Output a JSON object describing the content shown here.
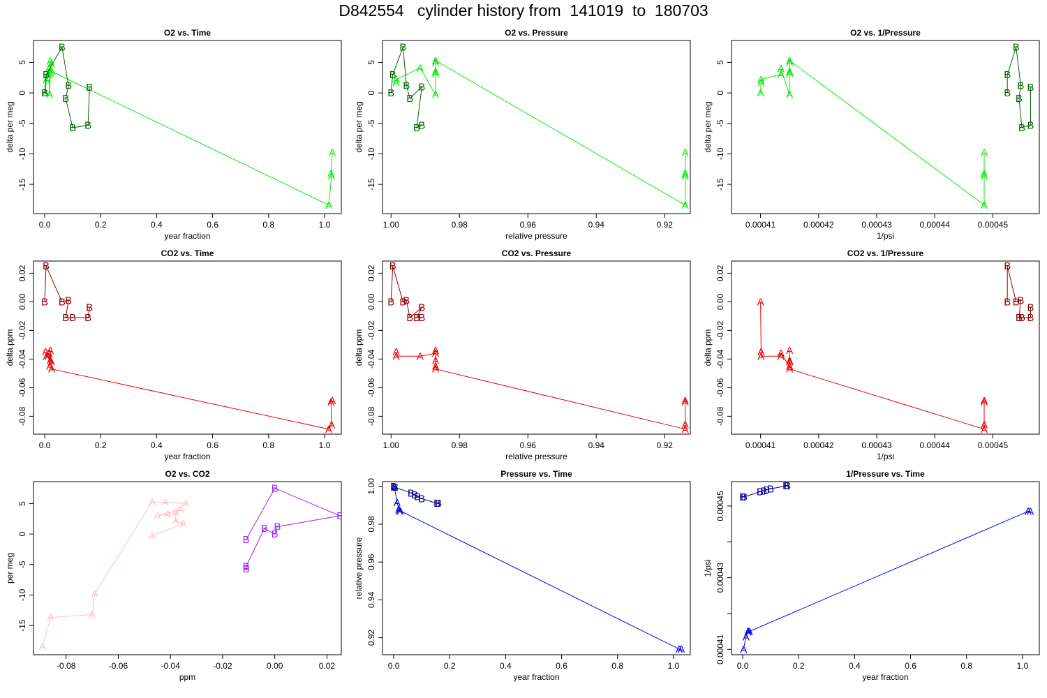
{
  "page_title": "D842554   cylinder history from  141019  to  180703",
  "colors": {
    "A_O2": "#00ee00",
    "B_O2": "#006400",
    "A_CO2": "#ee0000",
    "B_CO2": "#8b0000",
    "A_O2CO2": "#ffc0cb",
    "B_O2CO2": "#a020f0",
    "A_P": "#0000ee",
    "B_P": "#00008b"
  },
  "chart_data": [
    {
      "type": "line",
      "title": "O2 vs. Time",
      "xlabel": "year fraction",
      "ylabel": "delta per meg",
      "xlim": [
        -0.04,
        1.06
      ],
      "ylim": [
        -19.8,
        8.6
      ],
      "xticks": [
        0.0,
        0.2,
        0.4,
        0.6,
        0.8,
        1.0
      ],
      "xtick_labels": [
        "0.0",
        "0.2",
        "0.4",
        "0.6",
        "0.8",
        "1.0"
      ],
      "yticks": [
        -15,
        -10,
        -5,
        0,
        5
      ],
      "ytick_labels": [
        "-15",
        "-10",
        "-5",
        "0",
        "5"
      ],
      "series": [
        {
          "marker": "A",
          "color_key": "A_O2",
          "x": [
            0.003,
            0.006,
            0.012,
            0.015,
            0.018,
            0.02,
            0.02,
            0.024,
            0.025,
            1.015,
            1.025,
            1.023,
            1.028
          ],
          "y": [
            0.0,
            2.2,
            3.0,
            4.0,
            -0.3,
            3.2,
            5.2,
            4.8,
            3.5,
            -18.4,
            -13.7,
            -13.2,
            -9.8
          ]
        },
        {
          "marker": "B",
          "color_key": "B_O2",
          "x": [
            0.0,
            0.005,
            0.062,
            0.085,
            0.075,
            0.1,
            0.155,
            0.16
          ],
          "y": [
            0.0,
            3.0,
            7.5,
            1.2,
            -0.9,
            -5.7,
            -5.3,
            0.9
          ]
        }
      ]
    },
    {
      "type": "line",
      "title": "O2 vs. Pressure",
      "xlabel": "relative pressure",
      "ylabel": "delta per meg",
      "xlim": [
        1.0025,
        0.9125
      ],
      "ylim": [
        -19.8,
        8.6
      ],
      "xticks": [
        1.0,
        0.98,
        0.96,
        0.94,
        0.92
      ],
      "xtick_labels": [
        "1.00",
        "0.98",
        "0.96",
        "0.94",
        "0.92"
      ],
      "yticks": [
        -15,
        -10,
        -5,
        0,
        5
      ],
      "ytick_labels": [
        "-15",
        "-10",
        "-5",
        "0",
        "5"
      ],
      "series": [
        {
          "marker": "A",
          "color_key": "A_O2",
          "x": [
            0.9985,
            0.9985,
            0.9915,
            0.987,
            0.987,
            0.987,
            0.987,
            0.987,
            0.914,
            0.914,
            0.914,
            0.914
          ],
          "y": [
            1.7,
            2.2,
            4.1,
            -0.3,
            3.2,
            3.5,
            5.0,
            5.3,
            -18.4,
            -13.7,
            -13.2,
            -9.8
          ]
        },
        {
          "marker": "B",
          "color_key": "B_O2",
          "x": [
            1.0,
            0.9995,
            0.9965,
            0.9955,
            0.9945,
            0.991,
            0.9925,
            0.991
          ],
          "y": [
            0.0,
            3.0,
            7.5,
            1.2,
            -0.9,
            1.0,
            -5.7,
            -5.3
          ]
        }
      ]
    },
    {
      "type": "line",
      "title": "O2 vs. 1/Pressure",
      "xlabel": "1/psi",
      "ylabel": "delta per meg",
      "xlim": [
        0.000405,
        0.000458
      ],
      "ylim": [
        -19.8,
        8.6
      ],
      "xticks": [
        0.00041,
        0.00042,
        0.00043,
        0.00044,
        0.00045
      ],
      "xtick_labels": [
        "0.00041",
        "0.00042",
        "0.00043",
        "0.00044",
        "0.00045"
      ],
      "yticks": [
        -15,
        -10,
        -5,
        0,
        5
      ],
      "ytick_labels": [
        "-15",
        "-10",
        "-5",
        "0",
        "5"
      ],
      "series": [
        {
          "marker": "A",
          "color_key": "A_O2",
          "x": [
            0.00041,
            0.0004101,
            0.0004101,
            0.0004135,
            0.0004135,
            0.000415,
            0.000415,
            0.000415,
            0.000415,
            0.000415,
            0.0004485,
            0.0004485,
            0.0004485,
            0.0004485
          ],
          "y": [
            0.0,
            1.7,
            2.2,
            3.0,
            4.0,
            -0.3,
            3.2,
            3.5,
            5.0,
            5.3,
            -18.4,
            -13.7,
            -13.2,
            -9.8
          ]
        },
        {
          "marker": "B",
          "color_key": "B_O2",
          "x": [
            0.0004525,
            0.0004525,
            0.000454,
            0.0004548,
            0.0004545,
            0.000455,
            0.0004565,
            0.0004565
          ],
          "y": [
            0.0,
            3.0,
            7.5,
            1.2,
            -0.9,
            -5.7,
            -5.3,
            0.9
          ]
        }
      ]
    },
    {
      "type": "line",
      "title": "CO2 vs. Time",
      "xlabel": "year fraction",
      "ylabel": "delta ppm",
      "xlim": [
        -0.04,
        1.06
      ],
      "ylim": [
        -0.0925,
        0.0285
      ],
      "xticks": [
        0.0,
        0.2,
        0.4,
        0.6,
        0.8,
        1.0
      ],
      "xtick_labels": [
        "0.0",
        "0.2",
        "0.4",
        "0.6",
        "0.8",
        "1.0"
      ],
      "yticks": [
        -0.08,
        -0.06,
        -0.04,
        -0.02,
        0.0,
        0.02
      ],
      "ytick_labels": [
        "-0.08",
        "-0.06",
        "-0.04",
        "-0.02",
        "0.00",
        "0.02"
      ],
      "series": [
        {
          "marker": "A",
          "color_key": "A_CO2",
          "x": [
            0.003,
            0.006,
            0.012,
            0.015,
            0.018,
            0.02,
            0.02,
            0.024,
            0.025,
            1.015,
            1.025,
            1.023,
            1.028
          ],
          "y": [
            -0.035,
            -0.038,
            -0.038,
            -0.036,
            -0.045,
            -0.041,
            -0.034,
            -0.042,
            -0.047,
            -0.089,
            -0.086,
            -0.07,
            -0.069
          ]
        },
        {
          "marker": "B",
          "color_key": "B_CO2",
          "x": [
            0.0,
            0.005,
            0.062,
            0.085,
            0.075,
            0.1,
            0.155,
            0.16
          ],
          "y": [
            0.0,
            0.025,
            0.0,
            0.001,
            -0.011,
            -0.011,
            -0.011,
            -0.004
          ]
        }
      ]
    },
    {
      "type": "line",
      "title": "CO2 vs. Pressure",
      "xlabel": "relative pressure",
      "ylabel": "delta ppm",
      "xlim": [
        1.0025,
        0.9125
      ],
      "ylim": [
        -0.0925,
        0.0285
      ],
      "xticks": [
        1.0,
        0.98,
        0.96,
        0.94,
        0.92
      ],
      "xtick_labels": [
        "1.00",
        "0.98",
        "0.96",
        "0.94",
        "0.92"
      ],
      "yticks": [
        -0.08,
        -0.06,
        -0.04,
        -0.02,
        0.0,
        0.02
      ],
      "ytick_labels": [
        "-0.08",
        "-0.06",
        "-0.04",
        "-0.02",
        "0.00",
        "0.02"
      ],
      "series": [
        {
          "marker": "A",
          "color_key": "A_CO2",
          "x": [
            0.9985,
            0.9985,
            0.9915,
            0.987,
            0.987,
            0.987,
            0.987,
            0.987,
            0.914,
            0.914,
            0.914,
            0.914
          ],
          "y": [
            -0.035,
            -0.038,
            -0.038,
            -0.036,
            -0.045,
            -0.041,
            -0.034,
            -0.047,
            -0.089,
            -0.086,
            -0.07,
            -0.069
          ]
        },
        {
          "marker": "B",
          "color_key": "B_CO2",
          "x": [
            1.0,
            0.9995,
            0.9965,
            0.9955,
            0.9945,
            0.991,
            0.9925,
            0.991
          ],
          "y": [
            0.0,
            0.025,
            0.0,
            0.001,
            -0.011,
            -0.004,
            -0.011,
            -0.011
          ]
        }
      ]
    },
    {
      "type": "line",
      "title": "CO2 vs. 1/Pressure",
      "xlabel": "1/psi",
      "ylabel": "delta ppm",
      "xlim": [
        0.000405,
        0.000458
      ],
      "ylim": [
        -0.0925,
        0.0285
      ],
      "xticks": [
        0.00041,
        0.00042,
        0.00043,
        0.00044,
        0.00045
      ],
      "xtick_labels": [
        "0.00041",
        "0.00042",
        "0.00043",
        "0.00044",
        "0.00045"
      ],
      "yticks": [
        -0.08,
        -0.06,
        -0.04,
        -0.02,
        0.0,
        0.02
      ],
      "ytick_labels": [
        "-0.08",
        "-0.06",
        "-0.04",
        "-0.02",
        "0.00",
        "0.02"
      ],
      "series": [
        {
          "marker": "A",
          "color_key": "A_CO2",
          "x": [
            0.00041,
            0.0004101,
            0.0004101,
            0.0004135,
            0.0004135,
            0.000415,
            0.000415,
            0.000415,
            0.000415,
            0.000415,
            0.0004485,
            0.0004485,
            0.0004485,
            0.0004485
          ],
          "y": [
            0.0,
            -0.035,
            -0.038,
            -0.038,
            -0.036,
            -0.045,
            -0.041,
            -0.034,
            -0.042,
            -0.047,
            -0.089,
            -0.086,
            -0.07,
            -0.069
          ]
        },
        {
          "marker": "B",
          "color_key": "B_CO2",
          "x": [
            0.0004525,
            0.0004525,
            0.000454,
            0.0004548,
            0.0004545,
            0.000455,
            0.0004565,
            0.0004565
          ],
          "y": [
            0.0,
            0.025,
            0.0,
            0.001,
            -0.011,
            -0.011,
            -0.011,
            -0.004
          ]
        }
      ]
    },
    {
      "type": "line",
      "title": "O2 vs. CO2",
      "xlabel": "ppm",
      "ylabel": "per meg",
      "xlim": [
        -0.0925,
        0.0255
      ],
      "ylim": [
        -19.8,
        8.6
      ],
      "xticks": [
        -0.08,
        -0.06,
        -0.04,
        -0.02,
        0.0,
        0.02
      ],
      "xtick_labels": [
        "-0.08",
        "-0.06",
        "-0.04",
        "-0.02",
        "0.00",
        "0.02"
      ],
      "yticks": [
        -15,
        -10,
        -5,
        0,
        5
      ],
      "ytick_labels": [
        "-15",
        "-10",
        "-5",
        "0",
        "5"
      ],
      "series": [
        {
          "marker": "A",
          "color_key": "A_O2CO2",
          "x": [
            -0.089,
            -0.086,
            -0.07,
            -0.069,
            -0.047,
            -0.042,
            -0.034,
            -0.041,
            -0.045,
            -0.036,
            -0.038,
            -0.038,
            -0.035,
            -0.047
          ],
          "y": [
            -18.4,
            -13.7,
            -13.2,
            -9.8,
            5.3,
            5.2,
            5.0,
            3.2,
            3.0,
            4.0,
            3.5,
            2.2,
            1.7,
            -0.3
          ]
        },
        {
          "marker": "B",
          "color_key": "B_O2CO2",
          "x": [
            -0.011,
            0.0,
            0.025,
            0.001,
            0.0,
            -0.004,
            -0.011,
            -0.011
          ],
          "y": [
            -0.9,
            7.5,
            3.0,
            1.2,
            0.0,
            0.9,
            -5.3,
            -5.7
          ]
        }
      ]
    },
    {
      "type": "line",
      "title": "Pressure vs. Time",
      "xlabel": "year fraction",
      "ylabel": "relative pressure",
      "xlim": [
        -0.04,
        1.06
      ],
      "ylim": [
        0.911,
        1.0025
      ],
      "xticks": [
        0.0,
        0.2,
        0.4,
        0.6,
        0.8,
        1.0
      ],
      "xtick_labels": [
        "0.0",
        "0.2",
        "0.4",
        "0.6",
        "0.8",
        "1.0"
      ],
      "yticks": [
        0.92,
        0.94,
        0.96,
        0.98,
        1.0
      ],
      "ytick_labels": [
        "0.92",
        "0.94",
        "0.96",
        "0.98",
        "1.00"
      ],
      "series": [
        {
          "marker": "A",
          "color_key": "A_P",
          "x": [
            0.003,
            0.012,
            0.018,
            0.02,
            0.024,
            1.02,
            1.028
          ],
          "y": [
            0.9995,
            0.9915,
            0.988,
            0.987,
            0.987,
            0.914,
            0.914
          ]
        },
        {
          "marker": "B",
          "color_key": "B_P",
          "x": [
            0.0,
            0.005,
            0.062,
            0.075,
            0.085,
            0.1,
            0.155,
            0.16
          ],
          "y": [
            1.0,
            0.9995,
            0.9965,
            0.9955,
            0.9945,
            0.9935,
            0.991,
            0.991
          ]
        }
      ]
    },
    {
      "type": "line",
      "title": "1/Pressure vs. Time",
      "xlabel": "year fraction",
      "ylabel": "1/psi",
      "xlim": [
        -0.04,
        1.06
      ],
      "ylim": [
        0.0004085,
        0.0004568
      ],
      "xticks": [
        0.0,
        0.2,
        0.4,
        0.6,
        0.8,
        1.0
      ],
      "xtick_labels": [
        "0.0",
        "0.2",
        "0.4",
        "0.6",
        "0.8",
        "1.0"
      ],
      "yticks": [
        0.00041,
        0.00042,
        0.00043,
        0.00044,
        0.00045
      ],
      "ytick_labels": [
        "0.00041",
        "",
        "0.00043",
        "",
        "0.00045"
      ],
      "series": [
        {
          "marker": "A",
          "color_key": "A_P",
          "x": [
            0.003,
            0.012,
            0.018,
            0.02,
            0.024,
            1.02,
            1.028
          ],
          "y": [
            0.00041,
            0.0004135,
            0.0004148,
            0.000415,
            0.000415,
            0.0004485,
            0.0004485
          ]
        },
        {
          "marker": "B",
          "color_key": "B_P",
          "x": [
            0.0,
            0.005,
            0.062,
            0.075,
            0.085,
            0.1,
            0.155,
            0.16
          ],
          "y": [
            0.0004525,
            0.0004525,
            0.000454,
            0.0004542,
            0.0004545,
            0.0004548,
            0.0004556,
            0.0004556
          ]
        }
      ]
    }
  ]
}
